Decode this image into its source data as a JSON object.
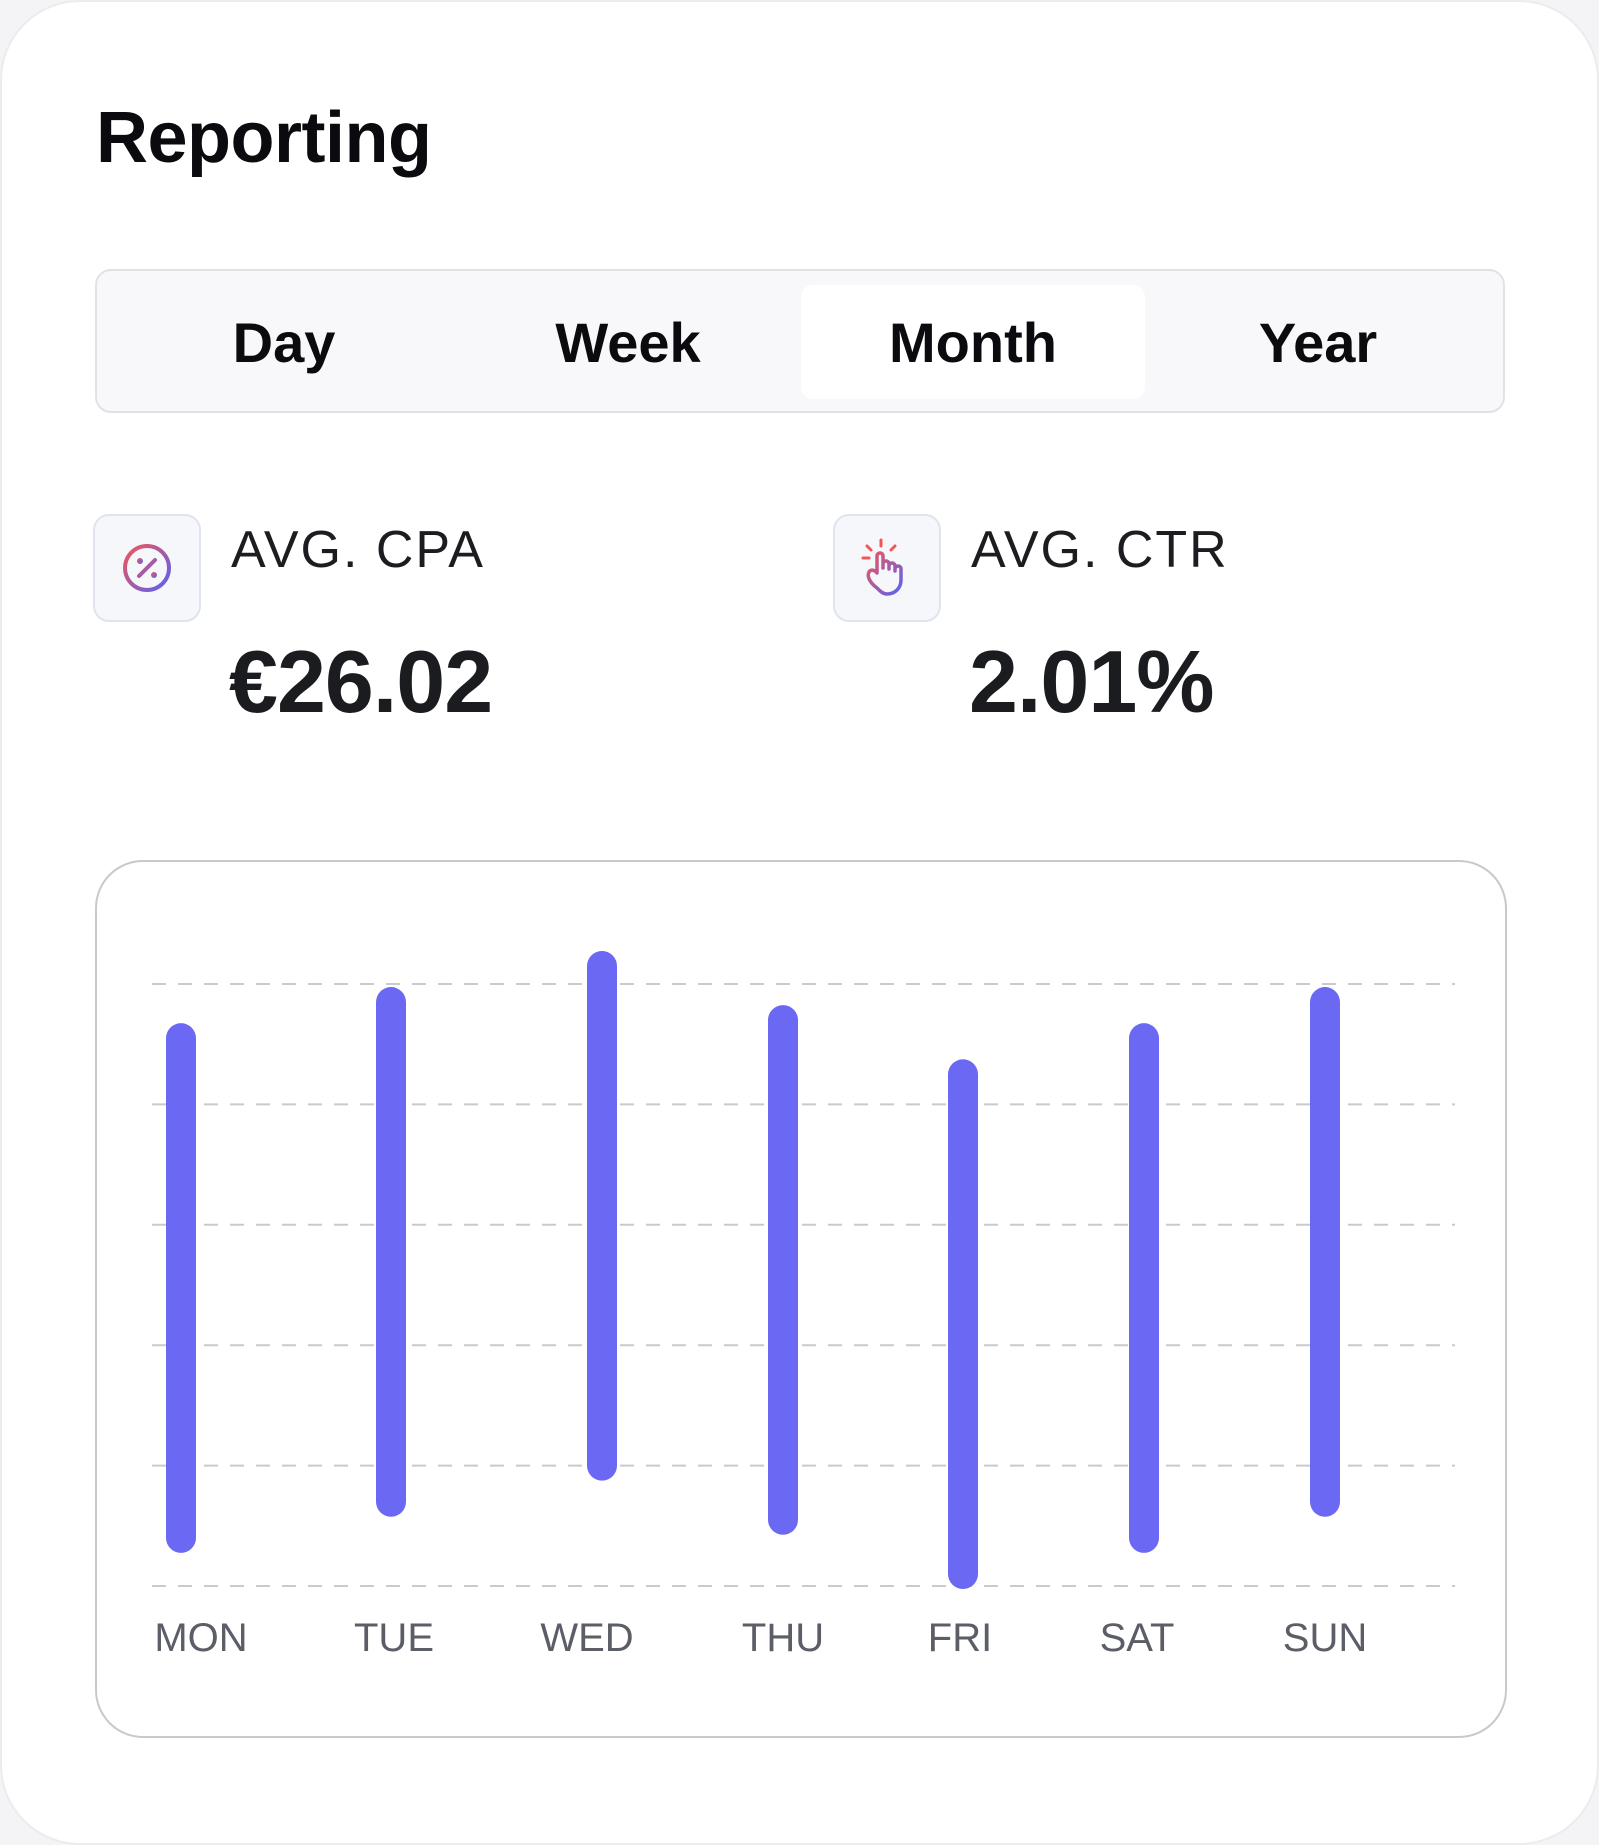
{
  "header": {
    "title": "Reporting"
  },
  "period_tabs": {
    "items": [
      {
        "label": "Day",
        "active": false
      },
      {
        "label": "Week",
        "active": false
      },
      {
        "label": "Month",
        "active": true
      },
      {
        "label": "Year",
        "active": false
      }
    ]
  },
  "metrics": {
    "cpa": {
      "label": "AVG. CPA",
      "value": "€26.02",
      "icon": "percent-badge-icon"
    },
    "ctr": {
      "label": "AVG. CTR",
      "value": "2.01%",
      "icon": "hand-tap-icon"
    }
  },
  "colors": {
    "bar": "#6b68f4",
    "gridline": "#c9cad0",
    "axis_label": "#5b5e66",
    "icon_gradient_start": "#f0565a",
    "icon_gradient_end": "#5b62f0"
  },
  "chart_data": {
    "type": "bar",
    "subtype": "range",
    "categories": [
      "MON",
      "TUE",
      "WED",
      "THU",
      "FRI",
      "SAT",
      "SUN"
    ],
    "series": [
      {
        "low": [
          0.4,
          0.7,
          1.0,
          0.55,
          0.1,
          0.4,
          0.7
        ],
        "high": [
          4.55,
          4.85,
          5.15,
          4.7,
          4.25,
          4.55,
          4.85
        ]
      }
    ],
    "ylim": [
      0,
      5
    ],
    "grid": true,
    "grid_style": "dashed",
    "xlabel": "",
    "ylabel": ""
  }
}
